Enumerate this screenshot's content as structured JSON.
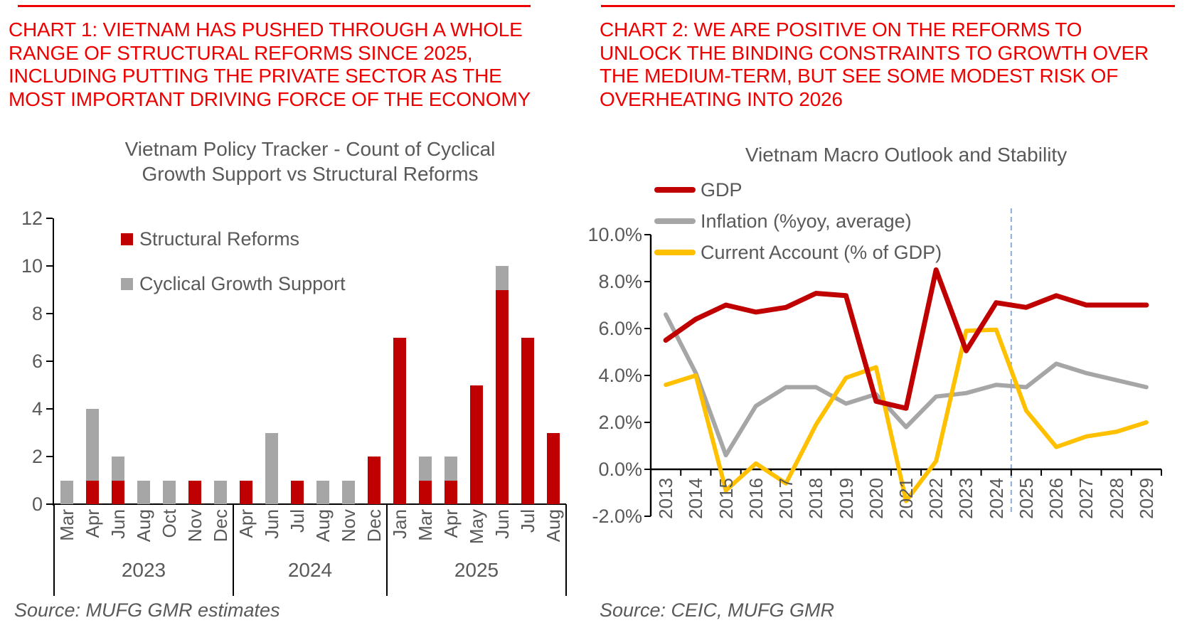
{
  "left": {
    "headline": "CHART 1: VIETNAM HAS PUSHED THROUGH A WHOLE\nRANGE OF STRUCTURAL REFORMS SINCE 2025,\nINCLUDING PUTTING THE PRIVATE SECTOR AS THE\nMOST IMPORTANT DRIVING FORCE OF THE ECONOMY",
    "source": "Source: MUFG GMR estimates"
  },
  "right": {
    "headline": "CHART 2: WE ARE POSITIVE ON THE REFORMS TO\nUNLOCK THE BINDING CONSTRAINTS TO GROWTH OVER\nTHE MEDIUM-TERM, BUT SEE SOME MODEST RISK OF\nOVERHEATING INTO 2026",
    "source": "Source: CEIC, MUFG GMR"
  },
  "colors": {
    "headline_red": "#ee0000",
    "bar_red": "#C00000",
    "gray": "#A6A6A6",
    "gold": "#FFC000",
    "divider_blue": "#8FAADC",
    "text_gray": "#595959",
    "axis_black": "#000000"
  },
  "chart_data": [
    {
      "type": "bar",
      "stacked": true,
      "title": "Vietnam Policy Tracker - Count of Cyclical\nGrowth Support vs Structural Reforms",
      "ylim": [
        0,
        12
      ],
      "yticks": [
        0,
        2,
        4,
        6,
        8,
        10,
        12
      ],
      "grid": false,
      "legend_position": "inside-top-left",
      "groups": [
        {
          "year": "2023",
          "months": [
            "Mar",
            "Apr",
            "Jun",
            "Aug",
            "Oct",
            "Nov",
            "Dec"
          ]
        },
        {
          "year": "2024",
          "months": [
            "Apr",
            "Jun",
            "Jul",
            "Aug",
            "Nov",
            "Dec"
          ]
        },
        {
          "year": "2025",
          "months": [
            "Jan",
            "Mar",
            "Apr",
            "May",
            "Jun",
            "Jul",
            "Aug"
          ]
        }
      ],
      "series": [
        {
          "name": "Structural Reforms",
          "color": "#C00000",
          "values": [
            0,
            1,
            1,
            0,
            0,
            1,
            0,
            1,
            0,
            1,
            0,
            0,
            2,
            7,
            1,
            1,
            5,
            9,
            7,
            3
          ]
        },
        {
          "name": "Cyclical Growth Support",
          "color": "#A6A6A6",
          "values": [
            1,
            3,
            1,
            1,
            1,
            0,
            1,
            0,
            3,
            0,
            1,
            1,
            0,
            0,
            1,
            1,
            0,
            1,
            0,
            0
          ]
        }
      ]
    },
    {
      "type": "line",
      "title": "Vietnam Macro Outlook and Stability",
      "x": [
        "2013",
        "2014",
        "2015",
        "2016",
        "2017",
        "2018",
        "2019",
        "2020",
        "2021",
        "2022",
        "2023",
        "2024",
        "2025",
        "2026",
        "2027",
        "2028",
        "2029"
      ],
      "ylim": [
        -2,
        10
      ],
      "ytick_values": [
        10,
        8,
        6,
        4,
        2,
        0,
        -2
      ],
      "ytick_labels": [
        "10.0%",
        "8.0%",
        "6.0%",
        "4.0%",
        "2.0%",
        "0.0%",
        "-2.0%"
      ],
      "grid": false,
      "legend_position": "inside-top-left",
      "forecast_divider_after": "2024",
      "series": [
        {
          "name": "GDP",
          "color": "#C00000",
          "values": [
            5.5,
            6.4,
            7.0,
            6.7,
            6.9,
            7.5,
            7.4,
            2.9,
            2.6,
            8.5,
            5.05,
            7.1,
            6.9,
            7.4,
            7.0,
            7.0,
            7.0
          ]
        },
        {
          "name": "Inflation (%yoy, average)",
          "color": "#A6A6A6",
          "values": [
            6.6,
            4.1,
            0.6,
            2.7,
            3.5,
            3.5,
            2.8,
            3.2,
            1.8,
            3.1,
            3.25,
            3.6,
            3.5,
            4.5,
            4.1,
            3.8,
            3.5
          ]
        },
        {
          "name": "Current Account (% of GDP)",
          "color": "#FFC000",
          "values": [
            3.6,
            4.0,
            -0.9,
            0.25,
            -0.6,
            1.9,
            3.9,
            4.35,
            -1.35,
            0.35,
            5.9,
            5.95,
            2.5,
            0.95,
            1.4,
            1.6,
            2.0
          ]
        }
      ]
    }
  ]
}
